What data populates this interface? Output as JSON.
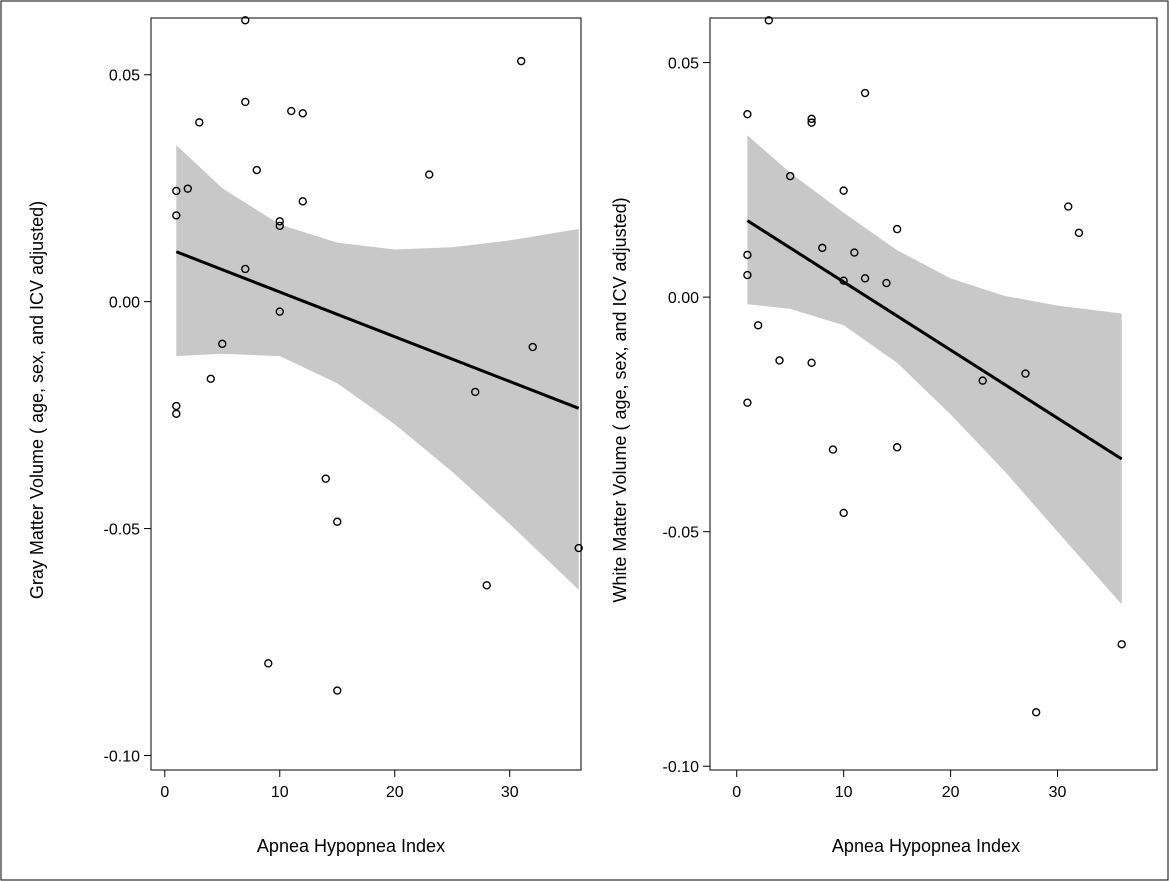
{
  "chart_data": [
    {
      "type": "scatter",
      "title": "",
      "xlabel": "Apnea Hypopnea Index",
      "ylabel": "Gray Matter Volume ( age, sex, and ICV adjusted)",
      "xlim": [
        -1.2,
        36.2
      ],
      "ylim": [
        -0.1032,
        0.0625
      ],
      "x_ticks": [
        0,
        10,
        20,
        30
      ],
      "x_tick_labels": [
        "0",
        "10",
        "20",
        "30"
      ],
      "y_ticks": [
        -0.1,
        -0.05,
        0,
        0.05
      ],
      "y_tick_labels": [
        "-0.10",
        "-0.05",
        "0.00",
        "0.05"
      ],
      "grid": false,
      "legend": "none",
      "points": [
        {
          "x": 7,
          "y": 0.062
        },
        {
          "x": 31,
          "y": 0.053
        },
        {
          "x": 7,
          "y": 0.044
        },
        {
          "x": 11,
          "y": 0.042
        },
        {
          "x": 12,
          "y": 0.0415
        },
        {
          "x": 3,
          "y": 0.0395
        },
        {
          "x": 8,
          "y": 0.029
        },
        {
          "x": 23,
          "y": 0.028
        },
        {
          "x": 1,
          "y": 0.0244
        },
        {
          "x": 2,
          "y": 0.0249
        },
        {
          "x": 12,
          "y": 0.0221
        },
        {
          "x": 1,
          "y": 0.019
        },
        {
          "x": 10,
          "y": 0.0177
        },
        {
          "x": 10,
          "y": 0.0167
        },
        {
          "x": 7,
          "y": 0.0072
        },
        {
          "x": 10,
          "y": -0.0022
        },
        {
          "x": 5,
          "y": -0.0093
        },
        {
          "x": 32,
          "y": -0.01
        },
        {
          "x": 4,
          "y": -0.017
        },
        {
          "x": 27,
          "y": -0.0199
        },
        {
          "x": 1,
          "y": -0.023
        },
        {
          "x": 1,
          "y": -0.0247
        },
        {
          "x": 14,
          "y": -0.039
        },
        {
          "x": 15,
          "y": -0.0485
        },
        {
          "x": 36,
          "y": -0.0543
        },
        {
          "x": 28,
          "y": -0.0625
        },
        {
          "x": 9,
          "y": -0.0797
        },
        {
          "x": 15,
          "y": -0.0857
        }
      ],
      "fit_line": {
        "x": [
          1,
          36
        ],
        "y": [
          0.011,
          -0.0235
        ]
      },
      "confidence_band": {
        "x": [
          1,
          5,
          10,
          15,
          20,
          25,
          30,
          36
        ],
        "upper": [
          0.0345,
          0.025,
          0.017,
          0.013,
          0.0115,
          0.012,
          0.0135,
          0.016
        ],
        "lower": [
          -0.012,
          -0.0115,
          -0.012,
          -0.018,
          -0.027,
          -0.0375,
          -0.049,
          -0.0635
        ]
      },
      "colors": {
        "band": "#c8c8c8",
        "line": "#000000",
        "marker": "#000000"
      }
    },
    {
      "type": "scatter",
      "title": "",
      "xlabel": "Apnea Hypopnea Index",
      "ylabel": "White Matter Volume ( age, sex, and ICV adjusted)",
      "xlim": [
        -2.5,
        39.3
      ],
      "ylim": [
        -0.1008,
        0.0595
      ],
      "x_ticks": [
        0,
        10,
        20,
        30
      ],
      "x_tick_labels": [
        "0",
        "10",
        "20",
        "30"
      ],
      "y_ticks": [
        -0.1,
        -0.05,
        0,
        0.05
      ],
      "y_tick_labels": [
        "-0.10",
        "-0.05",
        "0.00",
        "0.05"
      ],
      "grid": false,
      "legend": "none",
      "points": [
        {
          "x": 3,
          "y": 0.059
        },
        {
          "x": 12,
          "y": 0.0435
        },
        {
          "x": 1,
          "y": 0.039
        },
        {
          "x": 7,
          "y": 0.038
        },
        {
          "x": 7,
          "y": 0.0372
        },
        {
          "x": 5,
          "y": 0.0258
        },
        {
          "x": 10,
          "y": 0.0227
        },
        {
          "x": 31,
          "y": 0.0193
        },
        {
          "x": 15,
          "y": 0.0145
        },
        {
          "x": 32,
          "y": 0.0137
        },
        {
          "x": 8,
          "y": 0.0105
        },
        {
          "x": 11,
          "y": 0.0095
        },
        {
          "x": 1,
          "y": 0.009
        },
        {
          "x": 1,
          "y": 0.0047
        },
        {
          "x": 12,
          "y": 0.004
        },
        {
          "x": 10,
          "y": 0.0035
        },
        {
          "x": 14,
          "y": 0.003
        },
        {
          "x": 2,
          "y": -0.006
        },
        {
          "x": 4,
          "y": -0.0135
        },
        {
          "x": 7,
          "y": -0.014
        },
        {
          "x": 27,
          "y": -0.0163
        },
        {
          "x": 23,
          "y": -0.0178
        },
        {
          "x": 1,
          "y": -0.0225
        },
        {
          "x": 15,
          "y": -0.032
        },
        {
          "x": 9,
          "y": -0.0325
        },
        {
          "x": 10,
          "y": -0.046
        },
        {
          "x": 36,
          "y": -0.074
        },
        {
          "x": 28,
          "y": -0.0885
        }
      ],
      "fit_line": {
        "x": [
          1,
          36
        ],
        "y": [
          0.0163,
          -0.0345
        ]
      },
      "confidence_band": {
        "x": [
          1,
          5,
          10,
          15,
          20,
          25,
          30,
          36
        ],
        "upper": [
          0.0345,
          0.0265,
          0.018,
          0.01,
          0.004,
          0.0003,
          -0.0018,
          -0.0035
        ],
        "lower": [
          -0.0015,
          -0.0025,
          -0.006,
          -0.014,
          -0.025,
          -0.037,
          -0.05,
          -0.0655
        ]
      },
      "colors": {
        "band": "#c8c8c8",
        "line": "#000000",
        "marker": "#000000"
      }
    }
  ]
}
